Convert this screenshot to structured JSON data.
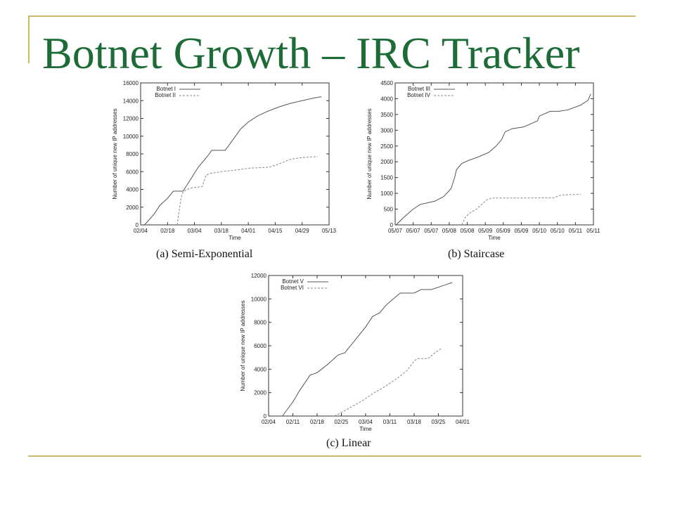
{
  "slide": {
    "title": "Botnet Growth – IRC Tracker",
    "accent_color": "#1d6b37",
    "rule_color": "#cdb86a"
  },
  "chart_data": [
    {
      "type": "line",
      "id": "a",
      "caption": "(a) Semi-Exponential",
      "xlabel": "Time",
      "ylabel": "Number of unique new IP addresses",
      "x_ticks": [
        "02/04",
        "02/18",
        "03/04",
        "03/18",
        "04/01",
        "04/15",
        "04/29",
        "05/13"
      ],
      "xlim": [
        0,
        98
      ],
      "ylim": [
        0,
        16000
      ],
      "y_ticks": [
        0,
        2000,
        4000,
        6000,
        8000,
        10000,
        12000,
        14000,
        16000
      ],
      "legend_position": "top-left",
      "series": [
        {
          "name": "Botnet I",
          "style": "solid",
          "points": [
            [
              2,
              0
            ],
            [
              7,
              1200
            ],
            [
              10,
              2200
            ],
            [
              14,
              3000
            ],
            [
              17,
              3800
            ],
            [
              22,
              3800
            ],
            [
              25,
              4800
            ],
            [
              30,
              6500
            ],
            [
              35,
              7800
            ],
            [
              37,
              8400
            ],
            [
              44,
              8400
            ],
            [
              48,
              9600
            ],
            [
              52,
              10800
            ],
            [
              56,
              11600
            ],
            [
              61,
              12300
            ],
            [
              66,
              12800
            ],
            [
              72,
              13300
            ],
            [
              78,
              13700
            ],
            [
              84,
              14000
            ],
            [
              90,
              14300
            ],
            [
              94,
              14450
            ]
          ]
        },
        {
          "name": "Botnet II",
          "style": "dashed",
          "points": [
            [
              19,
              0
            ],
            [
              20,
              1500
            ],
            [
              21,
              3000
            ],
            [
              22,
              3700
            ],
            [
              24,
              4000
            ],
            [
              27,
              4200
            ],
            [
              32,
              4300
            ],
            [
              34,
              5600
            ],
            [
              36,
              5800
            ],
            [
              42,
              6000
            ],
            [
              50,
              6200
            ],
            [
              57,
              6400
            ],
            [
              67,
              6500
            ],
            [
              71,
              6800
            ],
            [
              78,
              7400
            ],
            [
              84,
              7600
            ],
            [
              92,
              7700
            ]
          ]
        }
      ]
    },
    {
      "type": "line",
      "id": "b",
      "caption": "(b) Staircase",
      "xlabel": "Time",
      "ylabel": "Number of unique new IP addresses",
      "x_ticks": [
        "05/07",
        "05/07",
        "05/07",
        "05/08",
        "05/08",
        "05/09",
        "05/09",
        "05/09",
        "05/10",
        "05/10",
        "05/11",
        "05/11"
      ],
      "xlim": [
        0,
        11
      ],
      "ylim": [
        0,
        4500
      ],
      "y_ticks": [
        0,
        500,
        1000,
        1500,
        2000,
        2500,
        3000,
        3500,
        4000,
        4500
      ],
      "legend_position": "top-left",
      "series": [
        {
          "name": "Botnet III",
          "style": "solid",
          "points": [
            [
              0.05,
              0
            ],
            [
              0.5,
              250
            ],
            [
              1.0,
              500
            ],
            [
              1.4,
              650
            ],
            [
              1.8,
              700
            ],
            [
              2.2,
              750
            ],
            [
              2.7,
              900
            ],
            [
              3.1,
              1150
            ],
            [
              3.3,
              1500
            ],
            [
              3.4,
              1750
            ],
            [
              3.7,
              1950
            ],
            [
              4.1,
              2050
            ],
            [
              4.6,
              2150
            ],
            [
              5.2,
              2300
            ],
            [
              5.6,
              2500
            ],
            [
              5.9,
              2700
            ],
            [
              6.1,
              2950
            ],
            [
              6.5,
              3050
            ],
            [
              7.1,
              3100
            ],
            [
              7.5,
              3200
            ],
            [
              7.9,
              3300
            ],
            [
              8.0,
              3450
            ],
            [
              8.6,
              3600
            ],
            [
              9.1,
              3600
            ],
            [
              9.6,
              3650
            ],
            [
              10.3,
              3800
            ],
            [
              10.7,
              3950
            ],
            [
              10.85,
              4150
            ]
          ]
        },
        {
          "name": "Botnet IV",
          "style": "dashed",
          "points": [
            [
              3.7,
              0
            ],
            [
              3.9,
              250
            ],
            [
              4.2,
              400
            ],
            [
              4.5,
              500
            ],
            [
              4.8,
              650
            ],
            [
              5.1,
              800
            ],
            [
              5.4,
              850
            ],
            [
              7.0,
              850
            ],
            [
              8.8,
              860
            ],
            [
              9.2,
              950
            ],
            [
              10.3,
              970
            ]
          ]
        }
      ]
    },
    {
      "type": "line",
      "id": "c",
      "caption": "(c) Linear",
      "xlabel": "Time",
      "ylabel": "Number of unique new IP addresses",
      "x_ticks": [
        "02/04",
        "02/11",
        "02/18",
        "02/25",
        "03/04",
        "03/11",
        "03/18",
        "03/25",
        "04/01"
      ],
      "xlim": [
        0,
        56
      ],
      "ylim": [
        0,
        12000
      ],
      "y_ticks": [
        0,
        2000,
        4000,
        6000,
        8000,
        10000,
        12000
      ],
      "legend_position": "top-left",
      "series": [
        {
          "name": "Botnet V",
          "style": "solid",
          "points": [
            [
              4,
              0
            ],
            [
              7,
              1200
            ],
            [
              9,
              2200
            ],
            [
              12,
              3500
            ],
            [
              14,
              3700
            ],
            [
              17,
              4400
            ],
            [
              20,
              5200
            ],
            [
              22,
              5400
            ],
            [
              25,
              6500
            ],
            [
              28,
              7600
            ],
            [
              30,
              8500
            ],
            [
              32,
              8800
            ],
            [
              34,
              9500
            ],
            [
              36,
              10000
            ],
            [
              38,
              10500
            ],
            [
              42,
              10500
            ],
            [
              44,
              10800
            ],
            [
              47,
              10800
            ],
            [
              49,
              11000
            ],
            [
              51,
              11200
            ],
            [
              53,
              11400
            ]
          ]
        },
        {
          "name": "Botnet VI",
          "style": "dashed",
          "points": [
            [
              19,
              0
            ],
            [
              21,
              300
            ],
            [
              24,
              800
            ],
            [
              27,
              1300
            ],
            [
              30,
              1900
            ],
            [
              34,
              2600
            ],
            [
              37,
              3200
            ],
            [
              40,
              3900
            ],
            [
              42,
              4700
            ],
            [
              43,
              4900
            ],
            [
              46,
              4900
            ],
            [
              48,
              5400
            ],
            [
              50,
              5800
            ]
          ]
        }
      ]
    }
  ]
}
